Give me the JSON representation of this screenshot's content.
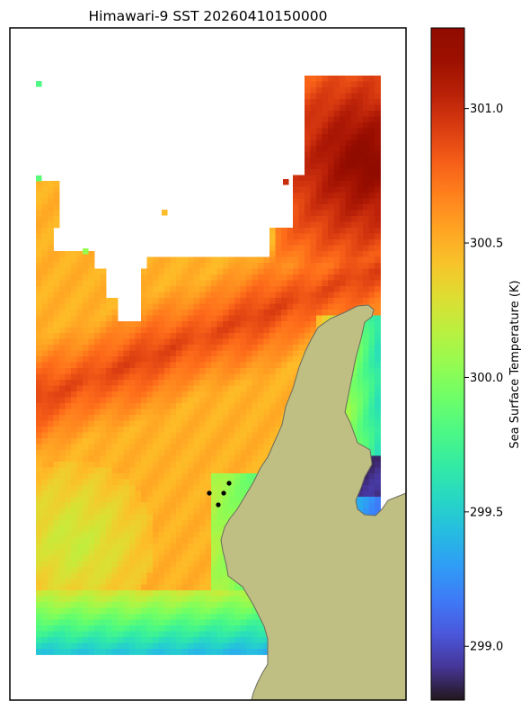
{
  "chart_data": {
    "type": "heatmap",
    "title": "Himawari-9 SST 20260410150000",
    "colorbar": {
      "label": "Sea Surface Temperature (K)",
      "colormap": "turbo",
      "range": [
        298.8,
        301.3
      ],
      "ticks": [
        299.0,
        299.5,
        300.0,
        300.5,
        301.0
      ],
      "tick_labels": [
        "299.0",
        "299.5",
        "300.0",
        "300.5",
        "301.0"
      ]
    },
    "land_color": "#bfbf84",
    "land_edge_color": "#6b6b5a",
    "missing_data_color": "#ffffff",
    "markers": {
      "color": "#000000",
      "count": 4
    },
    "field_description_values": {
      "northern_band_max": 301.3,
      "central_band": 300.9,
      "typical_open_water": 300.5,
      "southwest_minimum": 300.2,
      "coastal_shelf_min": 299.4,
      "far_southeast_min": 298.9
    }
  }
}
